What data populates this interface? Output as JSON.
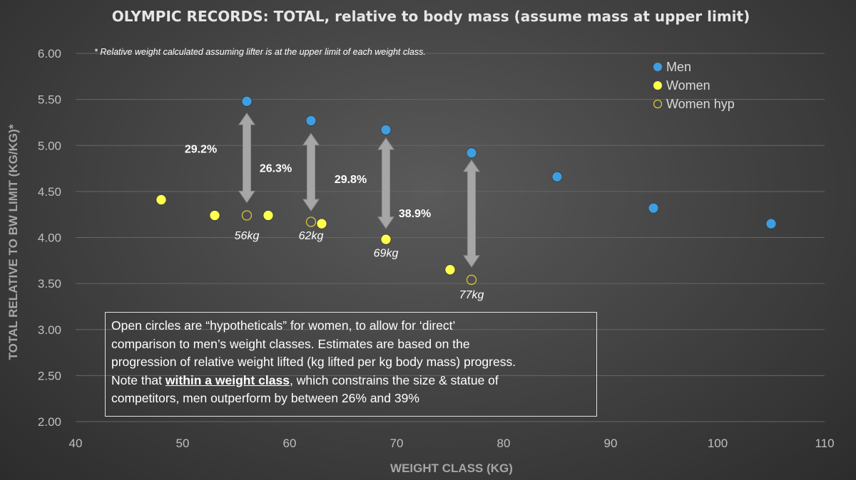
{
  "chart_data": {
    "type": "scatter",
    "title": "OLYMPIC RECORDS: TOTAL, relative to body mass (assume mass at upper limit)",
    "xlabel": "WEIGHT CLASS (KG)",
    "ylabel": "TOTAL RELATIVE TO BW LIMIT (KG/KG)*",
    "xlim": [
      40,
      110
    ],
    "ylim": [
      2.0,
      6.0
    ],
    "x_ticks": [
      "40",
      "50",
      "60",
      "70",
      "80",
      "90",
      "100",
      "110"
    ],
    "y_ticks": [
      "2.00",
      "2.50",
      "3.00",
      "3.50",
      "4.00",
      "4.50",
      "5.00",
      "5.50",
      "6.00"
    ],
    "grid": "horizontal",
    "legend_position": "top-right",
    "series": [
      {
        "name": "Men",
        "marker": "filled",
        "color": "#3f9ee0",
        "points": [
          {
            "x": 56,
            "y": 5.48
          },
          {
            "x": 62,
            "y": 5.27
          },
          {
            "x": 69,
            "y": 5.17
          },
          {
            "x": 77,
            "y": 4.92
          },
          {
            "x": 85,
            "y": 4.66
          },
          {
            "x": 94,
            "y": 4.32
          },
          {
            "x": 105,
            "y": 4.15
          }
        ]
      },
      {
        "name": "Women",
        "marker": "filled",
        "color": "#ffff4d",
        "points": [
          {
            "x": 48,
            "y": 4.41
          },
          {
            "x": 53,
            "y": 4.24
          },
          {
            "x": 58,
            "y": 4.24
          },
          {
            "x": 63,
            "y": 4.15
          },
          {
            "x": 69,
            "y": 3.98
          },
          {
            "x": 75,
            "y": 3.65
          }
        ]
      },
      {
        "name": "Women hyp",
        "marker": "open",
        "color": "#d4c53a",
        "points": [
          {
            "x": 56,
            "y": 4.24
          },
          {
            "x": 62,
            "y": 4.17
          },
          {
            "x": 77,
            "y": 3.54
          }
        ]
      }
    ],
    "annotations": {
      "note": "* Relative weight calculated assuming lifter is at the upper limit of each weight class.",
      "arrows": [
        {
          "x": 56,
          "y_top": 5.35,
          "y_bottom": 4.38,
          "label": "29.2%",
          "label_x": 51.7,
          "label_y": 4.92
        },
        {
          "x": 62,
          "y_top": 5.13,
          "y_bottom": 4.29,
          "label": "26.3%",
          "label_x": 58.7,
          "label_y": 4.71
        },
        {
          "x": 69,
          "y_top": 5.08,
          "y_bottom": 4.1,
          "label": "29.8%",
          "label_x": 65.7,
          "label_y": 4.59
        },
        {
          "x": 77,
          "y_top": 4.84,
          "y_bottom": 3.68,
          "label": "38.9%",
          "label_x": 71.7,
          "label_y": 4.22
        }
      ],
      "class_labels": [
        {
          "text": "56kg",
          "x": 56,
          "y": 3.98
        },
        {
          "text": "62kg",
          "x": 62,
          "y": 3.98
        },
        {
          "text": "69kg",
          "x": 69,
          "y": 3.79
        },
        {
          "text": "77kg",
          "x": 77,
          "y": 3.34
        }
      ]
    }
  },
  "textbox": {
    "line1": "Open circles are “hypotheticals” for women, to allow for ‘direct’",
    "line2": "comparison to men’s weight classes.  Estimates are based on the",
    "line3": "progression of relative weight lifted (kg lifted per kg body mass) progress.",
    "line4_pre": "Note that ",
    "line4_em": "within a weight class",
    "line4_post": ", which constrains the size & statue of",
    "line5": "competitors, men outperform by between 26% and 39%"
  }
}
